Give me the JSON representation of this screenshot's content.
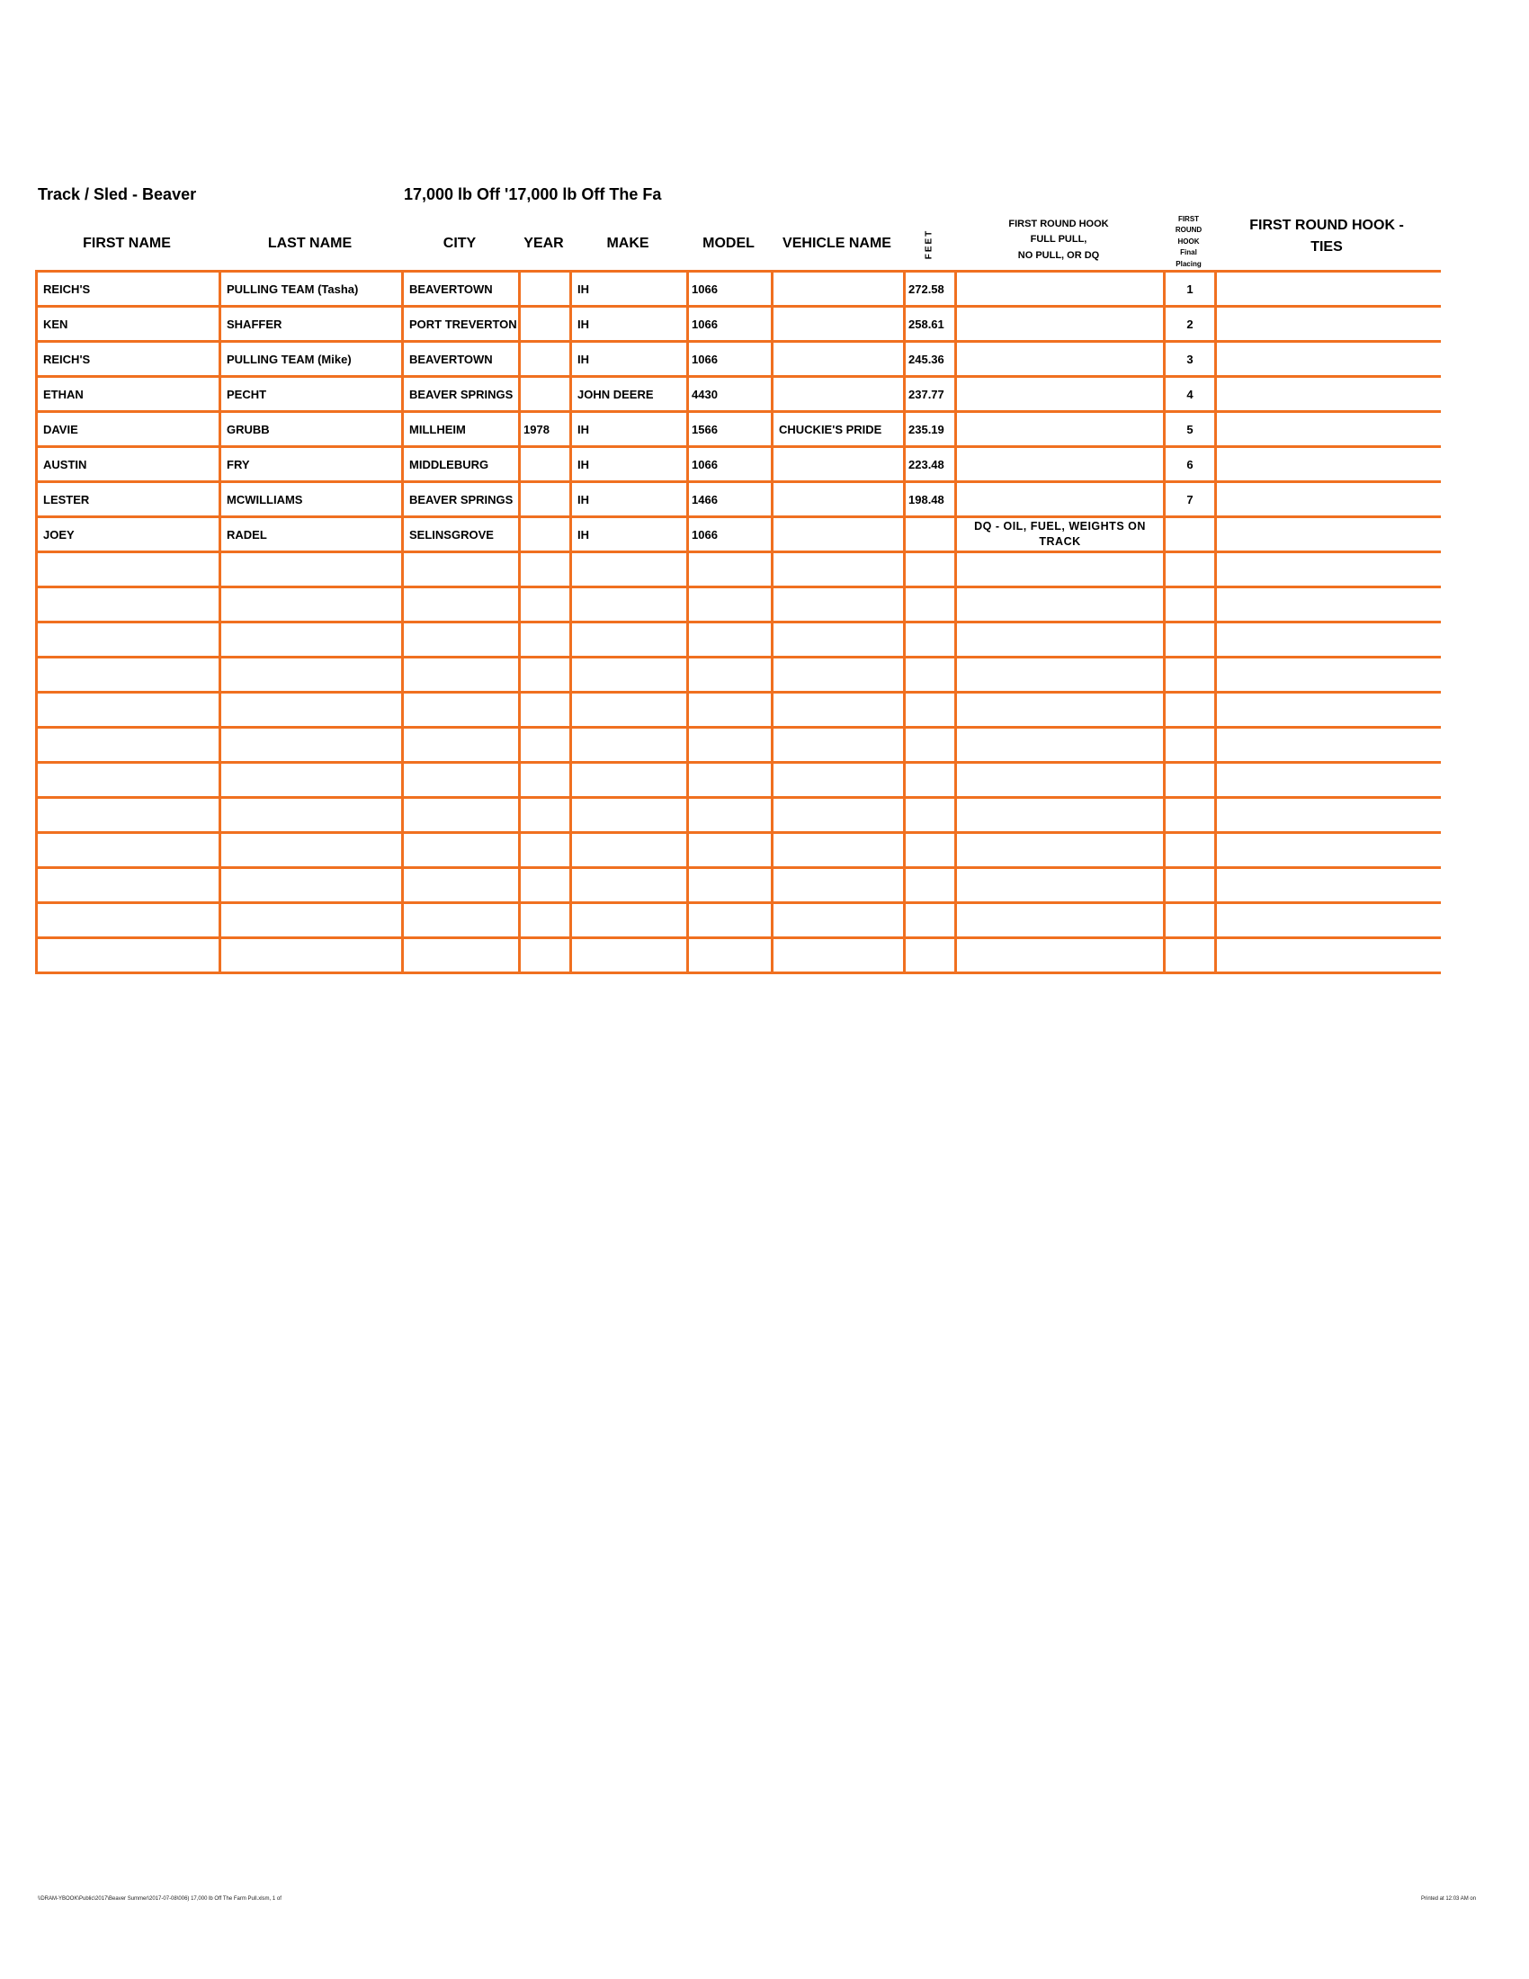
{
  "header": {
    "track": "Track / Sled - Beaver",
    "class": "17,000 lb Off '17,000 lb Off The Fa"
  },
  "columns": {
    "first_name": "FIRST NAME",
    "last_name": "LAST NAME",
    "city": "CITY",
    "year": "YEAR",
    "make": "MAKE",
    "model": "MODEL",
    "vehicle_name": "VEHICLE NAME",
    "feet": "FEET",
    "hook_result_1": "FIRST ROUND HOOK",
    "hook_result_2": "FULL PULL,",
    "hook_result_3": "NO PULL, OR DQ",
    "placing_1": "FIRST",
    "placing_2": "ROUND",
    "placing_3": "HOOK",
    "placing_4": "Final",
    "placing_5": "Placing",
    "ties_1": "FIRST ROUND HOOK -",
    "ties_2": "TIES"
  },
  "rows": [
    {
      "first": "REICH'S",
      "last": "PULLING TEAM  (Tasha)",
      "city": "BEAVERTOWN",
      "year": "",
      "make": "IH",
      "model": "1066",
      "vehicle": "",
      "feet": "272.58",
      "result": "",
      "placing": "1",
      "ties": ""
    },
    {
      "first": "KEN",
      "last": "SHAFFER",
      "city": "PORT TREVERTON",
      "year": "",
      "make": "IH",
      "model": "1066",
      "vehicle": "",
      "feet": "258.61",
      "result": "",
      "placing": "2",
      "ties": ""
    },
    {
      "first": "REICH'S",
      "last": "PULLING TEAM (Mike)",
      "city": "BEAVERTOWN",
      "year": "",
      "make": "IH",
      "model": "1066",
      "vehicle": "",
      "feet": "245.36",
      "result": "",
      "placing": "3",
      "ties": ""
    },
    {
      "first": "ETHAN",
      "last": "PECHT",
      "city": "BEAVER SPRINGS",
      "year": "",
      "make": "JOHN DEERE",
      "model": "4430",
      "vehicle": "",
      "feet": "237.77",
      "result": "",
      "placing": "4",
      "ties": ""
    },
    {
      "first": "DAVIE",
      "last": "GRUBB",
      "city": "MILLHEIM",
      "year": "1978",
      "make": "IH",
      "model": "1566",
      "vehicle": "CHUCKIE'S PRIDE",
      "feet": "235.19",
      "result": "",
      "placing": "5",
      "ties": ""
    },
    {
      "first": "AUSTIN",
      "last": "FRY",
      "city": "MIDDLEBURG",
      "year": "",
      "make": "IH",
      "model": "1066",
      "vehicle": "",
      "feet": "223.48",
      "result": "",
      "placing": "6",
      "ties": ""
    },
    {
      "first": "LESTER",
      "last": "MCWILLIAMS",
      "city": "BEAVER SPRINGS",
      "year": "",
      "make": "IH",
      "model": "1466",
      "vehicle": "",
      "feet": "198.48",
      "result": "",
      "placing": "7",
      "ties": ""
    },
    {
      "first": "JOEY",
      "last": "RADEL",
      "city": "SELINSGROVE",
      "year": "",
      "make": "IH",
      "model": "1066",
      "vehicle": "",
      "feet": "",
      "result": "DQ - OIL, FUEL, WEIGHTS ON TRACK",
      "placing": "",
      "ties": ""
    }
  ],
  "empty_row_count": 12,
  "footer": {
    "path": "\\\\DRAM-YBOOK\\Public\\2017\\Beaver Summer\\2017-07-08\\006) 17,000 lb Off The Farm Pull.xlsm, 1 of",
    "printed": "Printed at 12:03 AM on"
  },
  "colors": {
    "grid": "#F07020"
  }
}
